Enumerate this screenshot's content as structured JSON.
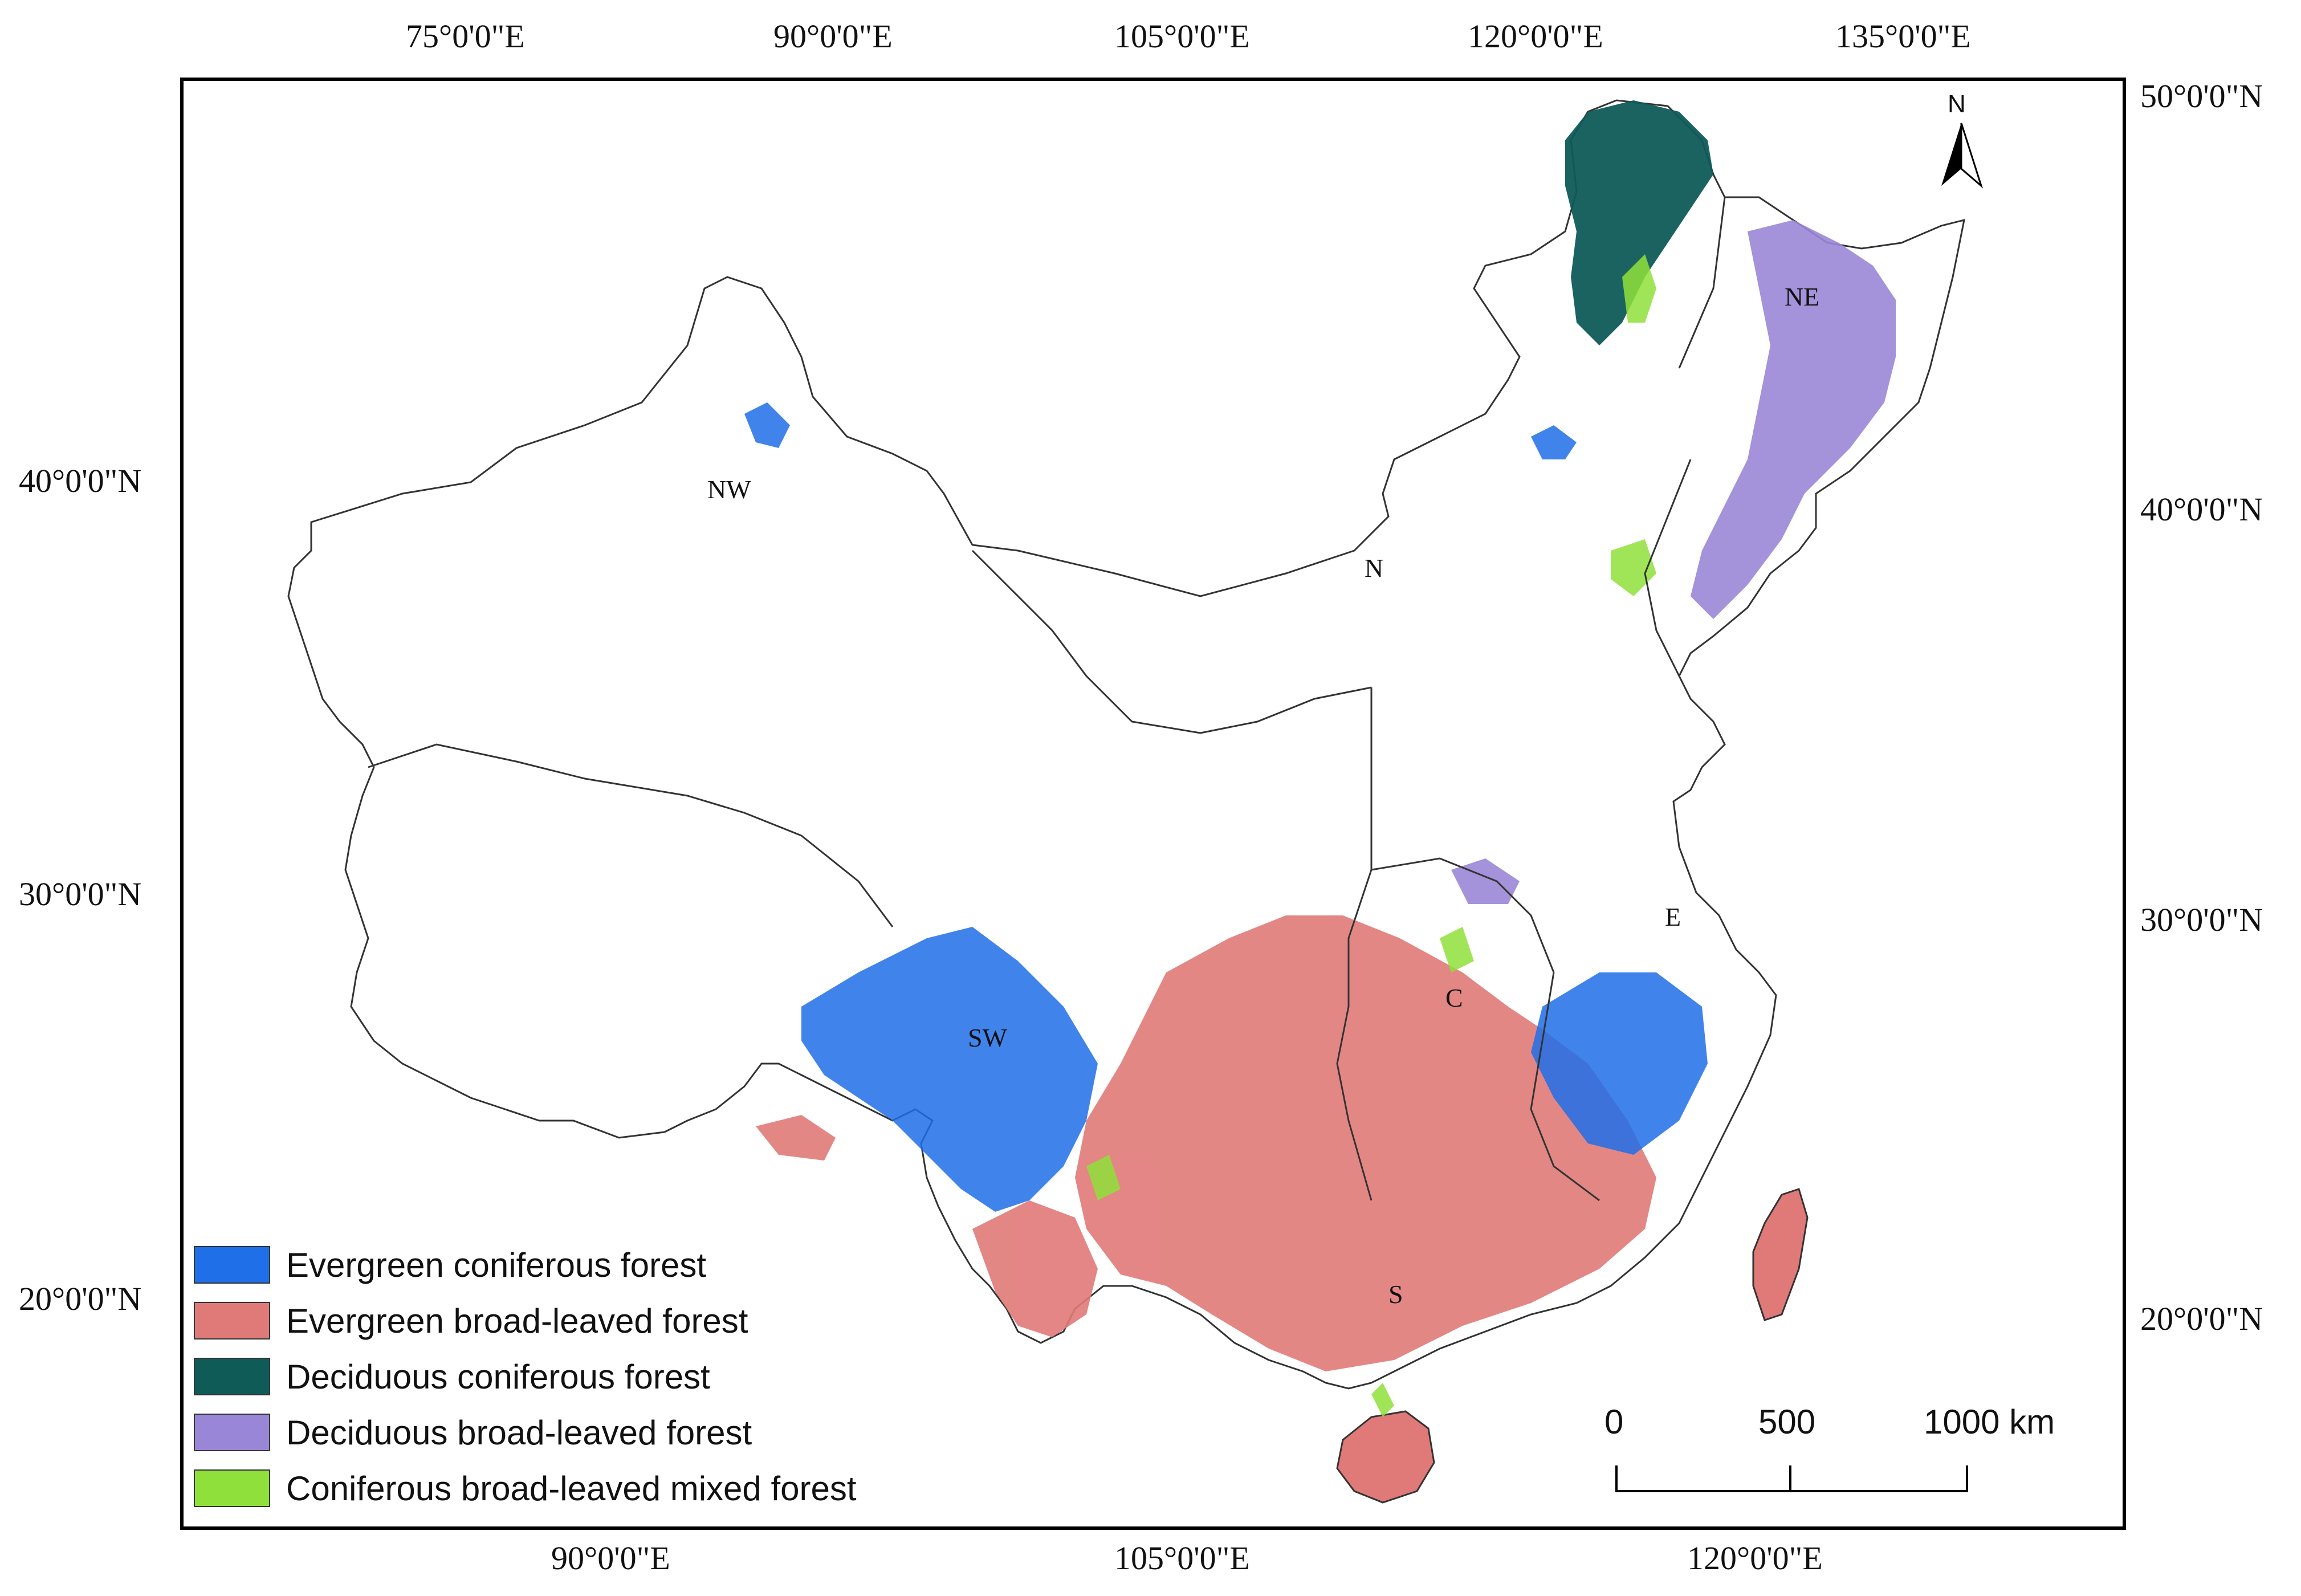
{
  "top_lon_labels": [
    "75°0'0\"E",
    "90°0'0\"E",
    "105°0'0\"E",
    "120°0'0\"E",
    "135°0'0\"E"
  ],
  "bottom_lon_labels": [
    "90°0'0\"E",
    "105°0'0\"E",
    "120°0'0\"E"
  ],
  "left_lat_labels": [
    "40°0'0\"N",
    "30°0'0\"N",
    "20°0'0\"N"
  ],
  "right_lat_labels": [
    "50°0'0\"N",
    "40°0'0\"N",
    "30°0'0\"N",
    "20°0'0\"N"
  ],
  "regions": [
    "NW",
    "N",
    "NE",
    "SW",
    "C",
    "E",
    "S"
  ],
  "north_arrow": {
    "label": "N",
    "icon": "north-arrow-icon"
  },
  "scale_bar": {
    "labels": [
      "0",
      "500",
      "1000 km"
    ]
  },
  "legend": [
    {
      "label": "Evergreen coniferous forest",
      "color": "#1f6fe8"
    },
    {
      "label": "Evergreen broad-leaved forest",
      "color": "#e07a78"
    },
    {
      "label": "Deciduous coniferous forest",
      "color": "#0f5b58"
    },
    {
      "label": "Deciduous broad-leaved forest",
      "color": "#9a86d6"
    },
    {
      "label": "Coniferous broad-leaved mixed forest",
      "color": "#8fe03a"
    }
  ]
}
